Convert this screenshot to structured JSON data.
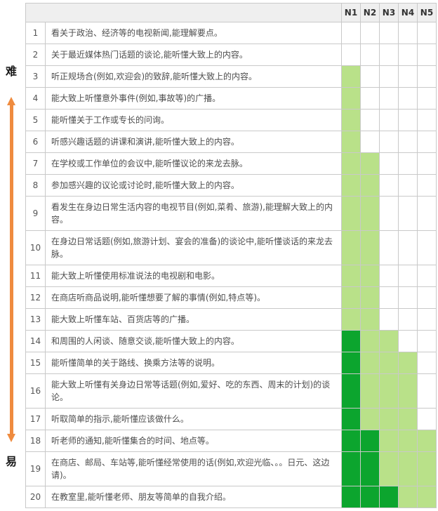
{
  "axis": {
    "hard_label": "难",
    "easy_label": "易"
  },
  "colors": {
    "light_green": "#b9e189",
    "dark_green": "#0ca52e",
    "arrow_orange": "#ef8b3f",
    "header_bg": "#efefef",
    "border": "#c9c9c9"
  },
  "chart_data": {
    "type": "heatmap",
    "columns": [
      "N1",
      "N2",
      "N3",
      "N4",
      "N5"
    ],
    "cell_states": {
      "0": "blank",
      "1": "light-green",
      "2": "dark-green"
    },
    "axis_note": "rows ordered from 难 (hard, top) to 易 (easy, bottom)",
    "rows": [
      {
        "no": 1,
        "text": "看关于政治、经济等的电视新闻,能理解要点。",
        "levels": [
          0,
          0,
          0,
          0,
          0
        ]
      },
      {
        "no": 2,
        "text": "关于最近媒体热门话题的谈论,能听懂大致上的内容。",
        "levels": [
          0,
          0,
          0,
          0,
          0
        ]
      },
      {
        "no": 3,
        "text": "听正规场合(例如,欢迎会)的致辞,能听懂大致上的内容。",
        "levels": [
          1,
          0,
          0,
          0,
          0
        ]
      },
      {
        "no": 4,
        "text": "能大致上听懂意外事件(例如,事故等)的广播。",
        "levels": [
          1,
          0,
          0,
          0,
          0
        ]
      },
      {
        "no": 5,
        "text": "能听懂关于工作或专长的问询。",
        "levels": [
          1,
          0,
          0,
          0,
          0
        ]
      },
      {
        "no": 6,
        "text": "听感兴趣话题的讲课和演讲,能听懂大致上的内容。",
        "levels": [
          1,
          0,
          0,
          0,
          0
        ]
      },
      {
        "no": 7,
        "text": "在学校或工作单位的会议中,能听懂议论的来龙去脉。",
        "levels": [
          1,
          1,
          0,
          0,
          0
        ]
      },
      {
        "no": 8,
        "text": "参加感兴趣的议论或讨论时,能听懂大致上的内容。",
        "levels": [
          1,
          1,
          0,
          0,
          0
        ]
      },
      {
        "no": 9,
        "text": "看发生在身边日常生活内容的电视节目(例如,菜肴、旅游),能理解大致上的内容。",
        "levels": [
          1,
          1,
          0,
          0,
          0
        ]
      },
      {
        "no": 10,
        "text": "在身边日常话题(例如,旅游计划、宴会的准备)的谈论中,能听懂谈话的来龙去脉。",
        "levels": [
          1,
          1,
          0,
          0,
          0
        ]
      },
      {
        "no": 11,
        "text": "能大致上听懂使用标准说法的电视剧和电影。",
        "levels": [
          1,
          1,
          0,
          0,
          0
        ]
      },
      {
        "no": 12,
        "text": "在商店听商品说明,能听懂想要了解的事情(例如,特点等)。",
        "levels": [
          1,
          1,
          0,
          0,
          0
        ]
      },
      {
        "no": 13,
        "text": "能大致上听懂车站、百货店等的广播。",
        "levels": [
          1,
          1,
          0,
          0,
          0
        ]
      },
      {
        "no": 14,
        "text": "和周围的人闲谈、随意交谈,能听懂大致上的内容。",
        "levels": [
          2,
          1,
          1,
          0,
          0
        ]
      },
      {
        "no": 15,
        "text": "能听懂简单的关于路线、换乘方法等的说明。",
        "levels": [
          2,
          1,
          1,
          1,
          0
        ]
      },
      {
        "no": 16,
        "text": "能大致上听懂有关身边日常等话题(例如,爱好、吃的东西、周末的计划)的谈论。",
        "levels": [
          2,
          1,
          1,
          1,
          0
        ]
      },
      {
        "no": 17,
        "text": "听取简单的指示,能听懂应该做什么。",
        "levels": [
          2,
          1,
          1,
          1,
          0
        ]
      },
      {
        "no": 18,
        "text": "听老师的通知,能听懂集合的时间、地点等。",
        "levels": [
          2,
          2,
          1,
          1,
          1
        ]
      },
      {
        "no": 19,
        "text": "在商店、邮局、车站等,能听懂经常使用的话(例如,欢迎光临、。。日元、这边请)。",
        "levels": [
          2,
          2,
          1,
          1,
          1
        ]
      },
      {
        "no": 20,
        "text": "在教室里,能听懂老师、朋友等简单的自我介绍。",
        "levels": [
          2,
          2,
          2,
          1,
          1
        ]
      }
    ]
  }
}
